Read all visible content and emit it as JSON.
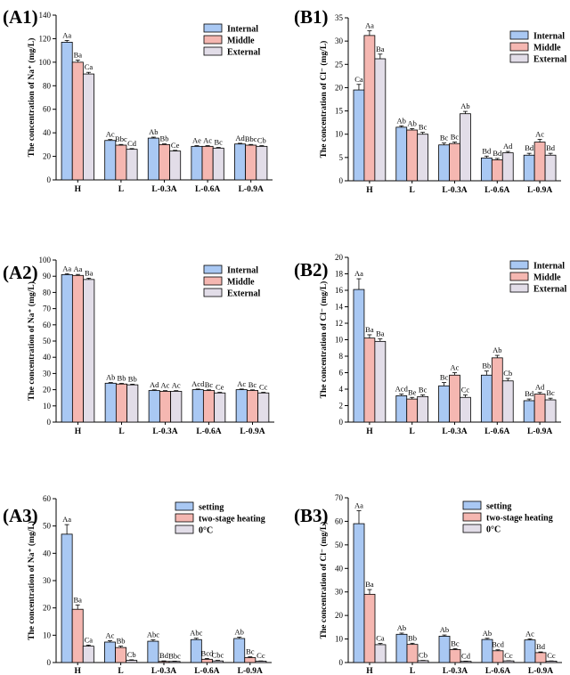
{
  "colors": {
    "internal": "#a9c8f3",
    "middle": "#f5b7b1",
    "external": "#e2dde8",
    "bar_stroke": "#000000"
  },
  "chart_data": [
    {
      "id": "A1",
      "panel_label": "(A1)",
      "type": "bar",
      "ylabel": "The concentration of Na⁺ (mg/L)",
      "ylim": [
        0,
        140
      ],
      "yticks": [
        0,
        20,
        40,
        60,
        80,
        100,
        120,
        140
      ],
      "categories": [
        "H",
        "L",
        "L-0.3A",
        "L-0.6A",
        "L-0.9A"
      ],
      "legend_position": "top-right",
      "series": [
        {
          "name": "Internal",
          "color": "#a9c8f3",
          "values": [
            117,
            33.5,
            35.5,
            28.5,
            30.5
          ],
          "errors": [
            1.5,
            0.8,
            0.8,
            0.6,
            0.6
          ],
          "labels": [
            "Aa",
            "Ac",
            "Ab",
            "Ae",
            "Ad"
          ]
        },
        {
          "name": "Middle",
          "color": "#f5b7b1",
          "values": [
            100,
            29.5,
            30,
            28.5,
            29.5
          ],
          "errors": [
            1.8,
            0.6,
            0.6,
            0.6,
            0.6
          ],
          "labels": [
            "Ba",
            "Bbc",
            "Bb",
            "Ac",
            "Bbc"
          ]
        },
        {
          "name": "External",
          "color": "#e2dde8",
          "values": [
            90,
            26,
            24.5,
            27,
            28.5
          ],
          "errors": [
            1.4,
            0.6,
            0.6,
            0.6,
            0.6
          ],
          "labels": [
            "Ca",
            "Cd",
            "Ce",
            "Bc",
            "Cb"
          ]
        }
      ]
    },
    {
      "id": "B1",
      "panel_label": "(B1)",
      "type": "bar",
      "ylabel": "The concentration of Cl⁻ (mg/L)",
      "ylim": [
        0,
        35
      ],
      "yticks": [
        0,
        5,
        10,
        15,
        20,
        25,
        30,
        35
      ],
      "categories": [
        "H",
        "L",
        "L-0.3A",
        "L-0.6A",
        "L-0.9A"
      ],
      "legend_position": "top-right",
      "series": [
        {
          "name": "Internal",
          "color": "#a9c8f3",
          "values": [
            19.5,
            11.5,
            7.7,
            4.9,
            5.5
          ],
          "errors": [
            1.2,
            0.3,
            0.4,
            0.4,
            0.4
          ],
          "labels": [
            "Ca",
            "Ab",
            "Bc",
            "Bd",
            "Bd"
          ]
        },
        {
          "name": "Middle",
          "color": "#f5b7b1",
          "values": [
            31.2,
            10.9,
            8.0,
            4.5,
            8.3
          ],
          "errors": [
            1.0,
            0.3,
            0.3,
            0.3,
            0.6
          ],
          "labels": [
            "Aa",
            "Ab",
            "Bc",
            "Bd",
            "Ac"
          ]
        },
        {
          "name": "External",
          "color": "#e2dde8",
          "values": [
            26.2,
            10.0,
            14.4,
            6.0,
            5.5
          ],
          "errors": [
            1.0,
            0.4,
            0.5,
            0.3,
            0.4
          ],
          "labels": [
            "Ba",
            "Bc",
            "Ab",
            "Ad",
            "Bd"
          ]
        }
      ]
    },
    {
      "id": "A2",
      "panel_label": "(A2)",
      "type": "bar",
      "ylabel": "The concentration of Na⁺ (mg/L)",
      "ylim": [
        0,
        100
      ],
      "yticks": [
        0,
        10,
        20,
        30,
        40,
        50,
        60,
        70,
        80,
        90,
        100
      ],
      "categories": [
        "H",
        "L",
        "L-0.3A",
        "L-0.6A",
        "L-0.9A"
      ],
      "legend_position": "top-right",
      "series": [
        {
          "name": "Internal",
          "color": "#a9c8f3",
          "values": [
            91,
            24,
            19.5,
            20,
            20
          ],
          "errors": [
            0.6,
            0.4,
            0.4,
            0.4,
            0.4
          ],
          "labels": [
            "Aa",
            "Ab",
            "Ad",
            "Acd",
            "Ac"
          ]
        },
        {
          "name": "Middle",
          "color": "#f5b7b1",
          "values": [
            90.5,
            23.5,
            19,
            19.5,
            19.5
          ],
          "errors": [
            0.6,
            0.4,
            0.4,
            0.4,
            0.4
          ],
          "labels": [
            "Aa",
            "Bb",
            "Ac",
            "Bc",
            "Bc"
          ]
        },
        {
          "name": "External",
          "color": "#e2dde8",
          "values": [
            88,
            23,
            19,
            18,
            18
          ],
          "errors": [
            0.8,
            0.4,
            0.4,
            0.4,
            0.4
          ],
          "labels": [
            "Ba",
            "Bb",
            "Ac",
            "Ce",
            "Cc"
          ]
        }
      ]
    },
    {
      "id": "B2",
      "panel_label": "(B2)",
      "type": "bar",
      "ylabel": "The concentration of Cl⁻ (mg/L)",
      "ylim": [
        0,
        20
      ],
      "yticks": [
        0,
        2,
        4,
        6,
        8,
        10,
        12,
        14,
        16,
        18,
        20
      ],
      "categories": [
        "H",
        "L",
        "L-0.3A",
        "L-0.6A",
        "L-0.9A"
      ],
      "legend_position": "top-right",
      "series": [
        {
          "name": "Internal",
          "color": "#a9c8f3",
          "values": [
            16.1,
            3.2,
            4.4,
            5.7,
            2.6
          ],
          "errors": [
            1.3,
            0.2,
            0.4,
            0.5,
            0.2
          ],
          "labels": [
            "Aa",
            "Acd",
            "Bc",
            "Bb",
            "Bd"
          ]
        },
        {
          "name": "Middle",
          "color": "#f5b7b1",
          "values": [
            10.2,
            2.8,
            5.7,
            7.8,
            3.4
          ],
          "errors": [
            0.4,
            0.2,
            0.3,
            0.3,
            0.2
          ],
          "labels": [
            "Ba",
            "Be",
            "Ac",
            "Ab",
            "Ad"
          ]
        },
        {
          "name": "External",
          "color": "#e2dde8",
          "values": [
            9.8,
            3.1,
            3.0,
            5.0,
            2.7
          ],
          "errors": [
            0.3,
            0.2,
            0.3,
            0.3,
            0.2
          ],
          "labels": [
            "Ba",
            "Bc",
            "Cc",
            "Cb",
            "Bc"
          ]
        }
      ]
    },
    {
      "id": "A3",
      "panel_label": "(A3)",
      "type": "bar",
      "ylabel": "The concentration of Na⁺ (mg/L)",
      "ylim": [
        0,
        60
      ],
      "yticks": [
        0,
        10,
        20,
        30,
        40,
        50,
        60
      ],
      "categories": [
        "H",
        "L",
        "L-0.3A",
        "L-0.6A",
        "L-0.9A"
      ],
      "legend_position": "top-right",
      "series": [
        {
          "name": "setting",
          "color": "#a9c8f3",
          "values": [
            47,
            7.5,
            7.8,
            8.4,
            8.8
          ],
          "errors": [
            3.5,
            0.5,
            0.5,
            0.5,
            0.5
          ],
          "labels": [
            "Aa",
            "Ac",
            "Abc",
            "Abc",
            "Ab"
          ]
        },
        {
          "name": "two-stage heating",
          "color": "#f5b7b1",
          "values": [
            19.5,
            5.5,
            0.4,
            1.2,
            1.8
          ],
          "errors": [
            1.6,
            0.5,
            0.2,
            0.3,
            0.3
          ],
          "labels": [
            "Ba",
            "Bb",
            "Bd",
            "Bcd",
            "Bc"
          ]
        },
        {
          "name": "0°C",
          "color": "#e2dde8",
          "values": [
            6,
            0.8,
            0.4,
            0.6,
            0.5
          ],
          "errors": [
            0.4,
            0.2,
            0.1,
            0.2,
            0.1
          ],
          "labels": [
            "Ca",
            "Cb",
            "Bbc",
            "Cbc",
            "Cc"
          ]
        }
      ]
    },
    {
      "id": "B3",
      "panel_label": "(B3)",
      "type": "bar",
      "ylabel": "The concentration of Cl⁻ (mg/L)",
      "ylim": [
        0,
        70
      ],
      "yticks": [
        0,
        10,
        20,
        30,
        40,
        50,
        60,
        70
      ],
      "categories": [
        "H",
        "L",
        "L-0.3A",
        "L-0.6A",
        "L-0.9A"
      ],
      "legend_position": "top-right",
      "series": [
        {
          "name": "setting",
          "color": "#a9c8f3",
          "values": [
            59,
            12,
            11.2,
            9.8,
            9.6
          ],
          "errors": [
            5.5,
            0.5,
            0.5,
            0.5,
            0.5
          ],
          "labels": [
            "Aa",
            "Ab",
            "Ab",
            "Ab",
            "Ac"
          ]
        },
        {
          "name": "two-stage heating",
          "color": "#f5b7b1",
          "values": [
            29,
            7.7,
            5.5,
            5,
            4.2
          ],
          "errors": [
            2.0,
            0.5,
            0.4,
            0.4,
            0.3
          ],
          "labels": [
            "Ba",
            "Bb",
            "Bc",
            "Bcd",
            "Bd"
          ]
        },
        {
          "name": "0°C",
          "color": "#e2dde8",
          "values": [
            7.6,
            0.8,
            0.5,
            0.7,
            0.6
          ],
          "errors": [
            0.5,
            0.1,
            0.1,
            0.1,
            0.1
          ],
          "labels": [
            "Ca",
            "Cb",
            "Cd",
            "Cc",
            "Cc"
          ]
        }
      ]
    }
  ]
}
